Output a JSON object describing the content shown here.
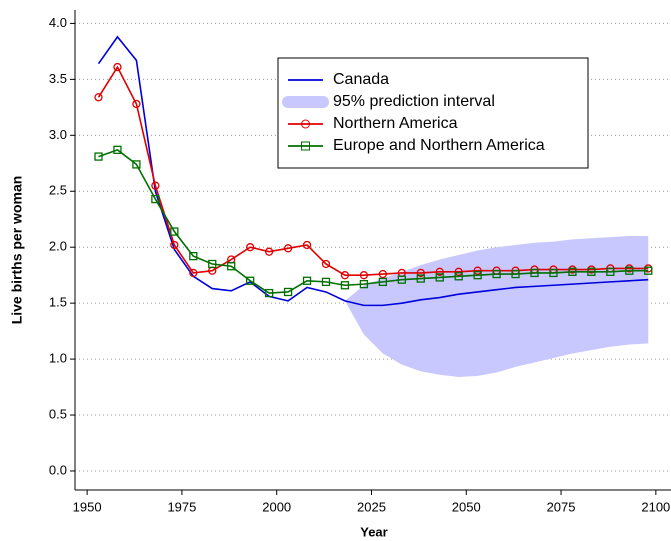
{
  "chart_data": {
    "type": "line",
    "x_label": "Year",
    "y_label": "Live births per woman",
    "x": [
      1953,
      1958,
      1963,
      1968,
      1973,
      1978,
      1983,
      1988,
      1993,
      1998,
      2003,
      2008,
      2013,
      2018,
      2023,
      2028,
      2033,
      2038,
      2043,
      2048,
      2053,
      2058,
      2063,
      2068,
      2073,
      2078,
      2083,
      2088,
      2093,
      2098
    ],
    "series": [
      {
        "name": "Canada",
        "color": "#0000dd",
        "values": [
          3.64,
          3.88,
          3.67,
          2.5,
          1.98,
          1.74,
          1.63,
          1.61,
          1.69,
          1.56,
          1.52,
          1.64,
          1.6,
          1.52,
          1.48,
          1.48,
          1.5,
          1.53,
          1.55,
          1.58,
          1.6,
          1.62,
          1.64,
          1.65,
          1.66,
          1.67,
          1.68,
          1.69,
          1.7,
          1.71
        ]
      },
      {
        "name": "95% prediction interval",
        "color": "#c8c8ff",
        "type": "band",
        "upper": [
          null,
          null,
          null,
          null,
          null,
          null,
          null,
          null,
          null,
          null,
          null,
          null,
          null,
          1.52,
          1.66,
          1.72,
          1.78,
          1.84,
          1.89,
          1.93,
          1.97,
          2.0,
          2.02,
          2.04,
          2.05,
          2.07,
          2.08,
          2.09,
          2.1,
          2.1
        ],
        "lower": [
          null,
          null,
          null,
          null,
          null,
          null,
          null,
          null,
          null,
          null,
          null,
          null,
          null,
          1.52,
          1.22,
          1.05,
          0.95,
          0.89,
          0.86,
          0.84,
          0.85,
          0.88,
          0.93,
          0.97,
          1.01,
          1.05,
          1.08,
          1.11,
          1.13,
          1.14
        ]
      },
      {
        "name": "Northern America",
        "color": "#e00000",
        "marker": "circle",
        "values": [
          3.34,
          3.61,
          3.28,
          2.55,
          2.02,
          1.77,
          1.79,
          1.89,
          2.0,
          1.96,
          1.99,
          2.02,
          1.85,
          1.75,
          1.75,
          1.76,
          1.77,
          1.77,
          1.78,
          1.78,
          1.79,
          1.79,
          1.79,
          1.8,
          1.8,
          1.8,
          1.8,
          1.81,
          1.81,
          1.81
        ]
      },
      {
        "name": "Europe and Northern America",
        "color": "#007000",
        "marker": "square",
        "values": [
          2.81,
          2.87,
          2.74,
          2.43,
          2.14,
          1.92,
          1.85,
          1.83,
          1.7,
          1.59,
          1.6,
          1.7,
          1.69,
          1.66,
          1.67,
          1.69,
          1.71,
          1.72,
          1.73,
          1.74,
          1.75,
          1.76,
          1.76,
          1.77,
          1.77,
          1.78,
          1.78,
          1.78,
          1.79,
          1.79
        ]
      }
    ],
    "xlim": [
      1946.8,
      2104
    ],
    "ylim": [
      -0.17,
      4.12
    ],
    "xticks": [
      1950,
      1975,
      2000,
      2025,
      2050,
      2075,
      2100
    ],
    "yticks": [
      {
        "value": 0,
        "label": "0.0"
      },
      0.5,
      {
        "value": 1,
        "label": "1.0"
      },
      1.5,
      {
        "value": 2,
        "label": "2.0"
      },
      2.5,
      {
        "value": 3,
        "label": "3.0"
      },
      3.5,
      {
        "value": 4,
        "label": "4.0"
      }
    ],
    "grid": true,
    "legend": "upper-right"
  }
}
